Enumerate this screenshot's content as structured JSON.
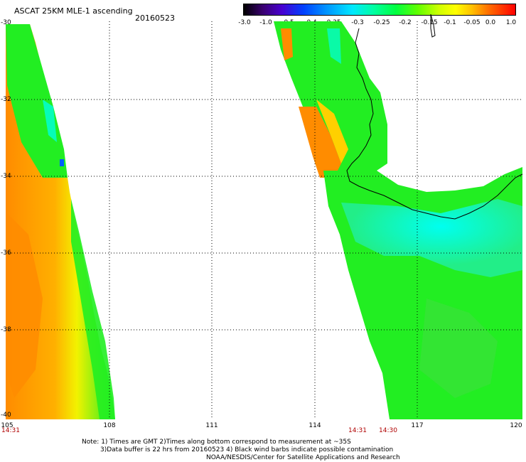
{
  "header": {
    "title": "ASCAT 25KM MLE-1 ascending",
    "date": "20160523"
  },
  "colorbar": {
    "labels": [
      "-3.0",
      "-1.0",
      "-0.5",
      "-0.4",
      "-0.35",
      "-0.3",
      "-0.25",
      "-0.2",
      "-0.15",
      "-0.1",
      "-0.05",
      "0.0",
      "1.0"
    ]
  },
  "axes": {
    "x_ticks": [
      "105",
      "108",
      "111",
      "114",
      "117",
      "120"
    ],
    "y_ticks": [
      "-30",
      "-32",
      "-34",
      "-36",
      "-38",
      "-40"
    ]
  },
  "pass_times": {
    "left": "14:31",
    "mid": "14:31",
    "right": "14:30"
  },
  "notes": {
    "line1": "Note: 1) Times are GMT 2)Times along bottom correspond to measurement at ~35S",
    "line2": "3)Data buffer is 22 hrs from 20160523 4) Black wind barbs indicate possible contamination",
    "line3": "NOAA/NESDIS/Center for Satellite Applications and Research"
  },
  "colors": {
    "swath_green": "#22ee22",
    "swath_orange": "#ff8c00",
    "swath_yellow": "#f2f200",
    "swath_cyan": "#00ffe0",
    "grid": "#000000",
    "time_text": "#b00000"
  }
}
